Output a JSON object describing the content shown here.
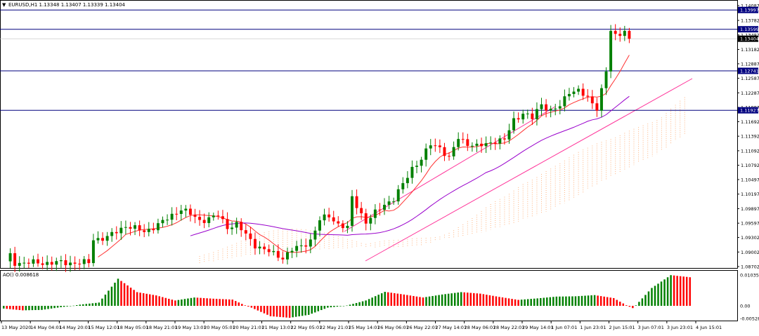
{
  "header": {
    "symbol_line": "EURUSD,H1  1.13348 1.13407 1.13339 1.13404"
  },
  "indicator": {
    "label": "AO() 0.008618",
    "scale_labels": [
      "0.010356",
      "0.00",
      "-0.005288"
    ]
  },
  "price_scale_labels": [
    "1.14087",
    "1.13782",
    "1.13482",
    "1.13182",
    "1.12887",
    "1.12587",
    "1.12287",
    "1.11987",
    "1.11692",
    "1.11392",
    "1.11092",
    "1.10792",
    "1.10497",
    "1.10197",
    "1.09897",
    "1.09597",
    "1.09302",
    "1.09002",
    "1.08702"
  ],
  "level_tags": [
    {
      "text": "1.13997",
      "kind": "hline"
    },
    {
      "text": "1.13599",
      "kind": "hline"
    },
    {
      "text": "1.13404",
      "kind": "current"
    },
    {
      "text": "1.12741",
      "kind": "hline"
    },
    {
      "text": "1.11927",
      "kind": "hline"
    }
  ],
  "time_labels": [
    "13 May 2020",
    "14 May 04:01",
    "14 May 20:01",
    "15 May 12:01",
    "18 May 05:01",
    "18 May 21:01",
    "19 May 13:01",
    "20 May 05:01",
    "20 May 21:01",
    "21 May 13:01",
    "22 May 05:01",
    "22 May 21:01",
    "25 May 14:01",
    "26 May 06:01",
    "26 May 22:01",
    "27 May 14:01",
    "28 May 06:01",
    "28 May 22:01",
    "29 May 14:01",
    "1 Jun 07:01",
    "1 Jun 23:01",
    "2 Jun 15:01",
    "3 Jun 07:01",
    "3 Jun 23:01",
    "4 Jun 15:01"
  ],
  "colors": {
    "bull": "#008000",
    "bear": "#ff0000",
    "hline": "#00007f",
    "tag_bg": "#00007f",
    "current_bg": "#000000",
    "ma_fast": "#ff3333",
    "ma_slow": "#9900cc",
    "channel": "#ff3399",
    "cloud": "#ffb37f"
  },
  "chart_data": {
    "type": "candlestick",
    "symbol": "EURUSD",
    "timeframe": "H1",
    "last_ohlc": {
      "open": 1.13348,
      "high": 1.13407,
      "low": 1.13339,
      "close": 1.13404
    },
    "price_range": [
      1.08702,
      1.14087
    ],
    "horizontal_levels": [
      1.13997,
      1.13599,
      1.12741,
      1.11927
    ],
    "current_price": 1.13404,
    "close_path": [
      [
        0,
        1.0878
      ],
      [
        1,
        1.0893
      ],
      [
        2,
        1.0878
      ],
      [
        18,
        1.0878
      ],
      [
        19,
        1.0927
      ],
      [
        22,
        1.093
      ],
      [
        26,
        1.0955
      ],
      [
        30,
        1.0942
      ],
      [
        34,
        1.0962
      ],
      [
        38,
        1.099
      ],
      [
        42,
        1.0965
      ],
      [
        46,
        1.0975
      ],
      [
        48,
        1.0952
      ],
      [
        50,
        1.0958
      ],
      [
        52,
        1.0935
      ],
      [
        54,
        1.0915
      ],
      [
        56,
        1.0905
      ],
      [
        58,
        1.0896
      ],
      [
        60,
        1.0889
      ],
      [
        62,
        1.0905
      ],
      [
        64,
        1.0911
      ],
      [
        66,
        1.0925
      ],
      [
        68,
        1.0966
      ],
      [
        70,
        1.0975
      ],
      [
        72,
        1.0958
      ],
      [
        74,
        1.0949
      ],
      [
        75,
        1.1012
      ],
      [
        76,
        1.0996
      ],
      [
        78,
        1.0962
      ],
      [
        82,
        1.0999
      ],
      [
        84,
        1.101
      ],
      [
        86,
        1.1039
      ],
      [
        88,
        1.1074
      ],
      [
        90,
        1.1092
      ],
      [
        92,
        1.1122
      ],
      [
        94,
        1.1117
      ],
      [
        96,
        1.1093
      ],
      [
        98,
        1.1135
      ],
      [
        100,
        1.1125
      ],
      [
        102,
        1.1118
      ],
      [
        104,
        1.1122
      ],
      [
        106,
        1.1131
      ],
      [
        108,
        1.1131
      ],
      [
        110,
        1.1172
      ],
      [
        112,
        1.1188
      ],
      [
        114,
        1.1176
      ],
      [
        116,
        1.1205
      ],
      [
        118,
        1.1193
      ],
      [
        120,
        1.12
      ],
      [
        122,
        1.1232
      ],
      [
        124,
        1.1235
      ],
      [
        126,
        1.1215
      ],
      [
        128,
        1.1198
      ],
      [
        130,
        1.1275
      ],
      [
        131,
        1.1355
      ],
      [
        132,
        1.1344
      ],
      [
        134,
        1.1358
      ],
      [
        135,
        1.134
      ]
    ],
    "ao_values": [
      -0.0012,
      -0.002,
      -0.0018,
      -0.0006,
      0.0004,
      0.0011,
      0.0091,
      0.0046,
      0.0035,
      0.0018,
      0.0028,
      0.0024,
      0.0021,
      -0.0008,
      -0.0046,
      -0.0053,
      -0.004,
      -0.0008,
      0.0001,
      0.0018,
      0.0047,
      0.0038,
      0.0028,
      0.0038,
      0.0046,
      0.0041,
      0.003,
      0.002,
      0.0025,
      0.0031,
      0.0032,
      0.0036,
      0.0026,
      -0.001,
      0.006,
      0.0103,
      0.0096
    ]
  }
}
